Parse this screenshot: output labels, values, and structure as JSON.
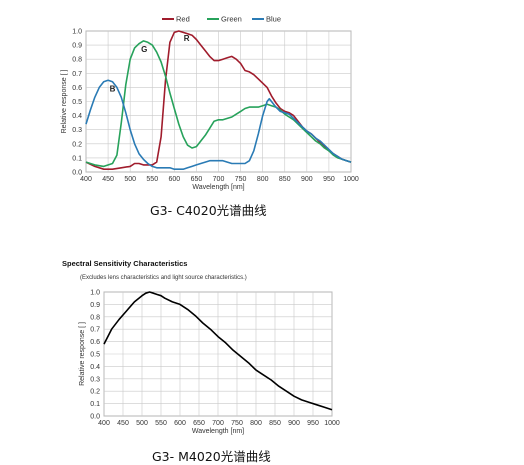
{
  "chart_data": [
    {
      "type": "line",
      "caption": "G3- C4020光谱曲线",
      "xlabel": "Wavelength [nm]",
      "ylabel": "Relative response [ ]",
      "xlim": [
        400,
        1000
      ],
      "ylim": [
        0,
        1.0
      ],
      "xticks": [
        400,
        450,
        500,
        550,
        600,
        650,
        700,
        750,
        800,
        850,
        900,
        950,
        1000
      ],
      "yticks": [
        0.0,
        0.1,
        0.2,
        0.3,
        0.4,
        0.5,
        0.6,
        0.7,
        0.8,
        0.9,
        1.0
      ],
      "grid": true,
      "legend": "top-center",
      "annotations": [
        {
          "text": "R",
          "x": 628,
          "y": 0.93
        },
        {
          "text": "G",
          "x": 532,
          "y": 0.85
        },
        {
          "text": "B",
          "x": 460,
          "y": 0.57
        }
      ],
      "series": [
        {
          "name": "Red",
          "color": "#a01c2c",
          "x": [
            400,
            420,
            440,
            460,
            480,
            500,
            510,
            520,
            530,
            540,
            550,
            560,
            570,
            580,
            590,
            600,
            610,
            620,
            630,
            640,
            650,
            660,
            670,
            680,
            690,
            700,
            710,
            720,
            730,
            740,
            750,
            760,
            770,
            780,
            790,
            800,
            810,
            820,
            830,
            840,
            850,
            860,
            870,
            880,
            890,
            900,
            910,
            920,
            930,
            940,
            950,
            960,
            970,
            980,
            990,
            1000
          ],
          "y": [
            0.07,
            0.04,
            0.02,
            0.02,
            0.03,
            0.04,
            0.06,
            0.06,
            0.05,
            0.05,
            0.05,
            0.07,
            0.25,
            0.65,
            0.92,
            0.99,
            1.0,
            0.99,
            0.98,
            0.97,
            0.94,
            0.9,
            0.86,
            0.82,
            0.79,
            0.79,
            0.8,
            0.81,
            0.82,
            0.8,
            0.77,
            0.72,
            0.71,
            0.69,
            0.66,
            0.63,
            0.6,
            0.54,
            0.49,
            0.45,
            0.43,
            0.42,
            0.4,
            0.36,
            0.32,
            0.29,
            0.27,
            0.24,
            0.21,
            0.18,
            0.15,
            0.13,
            0.11,
            0.09,
            0.08,
            0.07
          ]
        },
        {
          "name": "Green",
          "color": "#27a25b",
          "x": [
            400,
            420,
            440,
            460,
            470,
            480,
            490,
            500,
            510,
            520,
            530,
            540,
            550,
            560,
            570,
            580,
            590,
            600,
            610,
            620,
            630,
            640,
            650,
            660,
            670,
            680,
            690,
            700,
            710,
            720,
            730,
            740,
            750,
            760,
            770,
            780,
            790,
            800,
            810,
            820,
            830,
            840,
            850,
            860,
            870,
            880,
            890,
            900,
            910,
            920,
            930,
            940,
            950,
            960,
            970,
            980,
            990,
            1000
          ],
          "y": [
            0.07,
            0.05,
            0.04,
            0.06,
            0.12,
            0.35,
            0.62,
            0.8,
            0.88,
            0.91,
            0.93,
            0.92,
            0.9,
            0.85,
            0.78,
            0.68,
            0.56,
            0.45,
            0.34,
            0.25,
            0.19,
            0.17,
            0.18,
            0.22,
            0.26,
            0.31,
            0.36,
            0.37,
            0.37,
            0.38,
            0.39,
            0.41,
            0.43,
            0.45,
            0.46,
            0.46,
            0.46,
            0.47,
            0.48,
            0.47,
            0.46,
            0.44,
            0.41,
            0.39,
            0.37,
            0.34,
            0.31,
            0.28,
            0.25,
            0.22,
            0.2,
            0.17,
            0.15,
            0.12,
            0.1,
            0.09,
            0.08,
            0.07
          ]
        },
        {
          "name": "Blue",
          "color": "#2a7bb5",
          "x": [
            400,
            410,
            420,
            430,
            440,
            450,
            460,
            470,
            480,
            490,
            500,
            510,
            520,
            530,
            540,
            550,
            560,
            570,
            580,
            590,
            600,
            610,
            620,
            630,
            640,
            650,
            660,
            670,
            680,
            690,
            700,
            710,
            720,
            730,
            740,
            750,
            760,
            770,
            780,
            790,
            800,
            810,
            815,
            820,
            830,
            840,
            850,
            860,
            870,
            880,
            890,
            900,
            910,
            920,
            930,
            940,
            950,
            960,
            970,
            980,
            990,
            1000
          ],
          "y": [
            0.34,
            0.44,
            0.53,
            0.6,
            0.64,
            0.65,
            0.64,
            0.6,
            0.53,
            0.42,
            0.3,
            0.2,
            0.13,
            0.09,
            0.06,
            0.04,
            0.03,
            0.03,
            0.03,
            0.03,
            0.02,
            0.02,
            0.02,
            0.03,
            0.04,
            0.05,
            0.06,
            0.07,
            0.08,
            0.08,
            0.08,
            0.08,
            0.07,
            0.06,
            0.06,
            0.06,
            0.06,
            0.08,
            0.15,
            0.27,
            0.4,
            0.5,
            0.52,
            0.5,
            0.46,
            0.43,
            0.42,
            0.41,
            0.38,
            0.35,
            0.32,
            0.29,
            0.27,
            0.24,
            0.22,
            0.19,
            0.16,
            0.13,
            0.11,
            0.09,
            0.08,
            0.07
          ]
        }
      ]
    },
    {
      "type": "line",
      "title": "Spectral Sensitivity Characteristics",
      "subtitle": "(Excludes lens characteristics and light source characteristics.)",
      "caption": "G3- M4020光谱曲线",
      "xlabel": "Wavelength [nm]",
      "ylabel": "Relative response [ ]",
      "xlim": [
        400,
        1000
      ],
      "ylim": [
        0,
        1.0
      ],
      "xticks": [
        400,
        450,
        500,
        550,
        600,
        650,
        700,
        750,
        800,
        850,
        900,
        950,
        1000
      ],
      "yticks": [
        0.0,
        0.1,
        0.2,
        0.3,
        0.4,
        0.5,
        0.6,
        0.7,
        0.8,
        0.9,
        1.0
      ],
      "grid": true,
      "series": [
        {
          "name": "",
          "color": "#000000",
          "x": [
            400,
            420,
            440,
            460,
            480,
            500,
            510,
            520,
            530,
            540,
            550,
            560,
            580,
            600,
            620,
            640,
            660,
            680,
            700,
            720,
            740,
            760,
            780,
            800,
            820,
            840,
            860,
            880,
            900,
            920,
            940,
            960,
            980,
            1000
          ],
          "y": [
            0.58,
            0.7,
            0.78,
            0.85,
            0.92,
            0.97,
            0.99,
            1.0,
            0.99,
            0.98,
            0.97,
            0.95,
            0.92,
            0.9,
            0.86,
            0.81,
            0.75,
            0.7,
            0.64,
            0.59,
            0.53,
            0.48,
            0.43,
            0.37,
            0.33,
            0.29,
            0.24,
            0.2,
            0.16,
            0.13,
            0.11,
            0.09,
            0.07,
            0.05
          ]
        }
      ]
    }
  ],
  "legend_entries": [
    "Red",
    "Green",
    "Blue"
  ]
}
